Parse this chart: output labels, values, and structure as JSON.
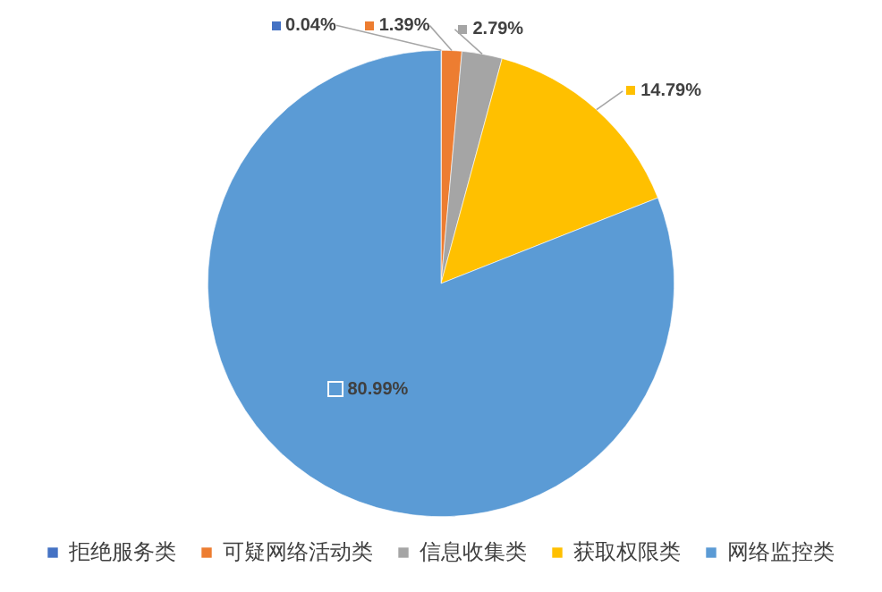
{
  "chart_data": {
    "type": "pie",
    "categories": [
      "拒绝服务类",
      "可疑网络活动类",
      "信息收集类",
      "获取权限类",
      "网络监控类"
    ],
    "values": [
      0.04,
      1.39,
      2.79,
      14.79,
      80.99
    ],
    "colors": [
      "#4472c4",
      "#ed7d31",
      "#a5a5a5",
      "#ffc000",
      "#5b9bd5"
    ],
    "value_labels": [
      "0.04%",
      "1.39%",
      "2.79%",
      "14.79%",
      "80.99%"
    ],
    "legend": "bottom"
  }
}
